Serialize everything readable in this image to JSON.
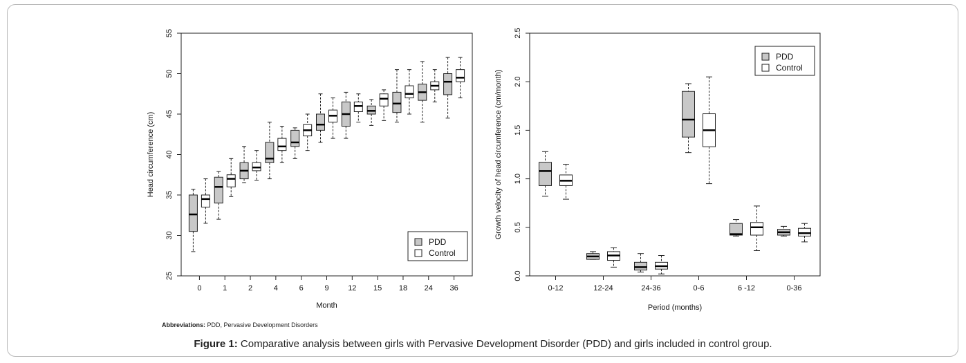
{
  "chart_data": [
    {
      "type": "boxplot",
      "xlabel": "Month",
      "ylabel": "Head circumference (cm)",
      "ylim": [
        25,
        55
      ],
      "yticks": [
        25,
        30,
        35,
        40,
        45,
        50,
        55
      ],
      "categories": [
        "0",
        "1",
        "2",
        "4",
        "6",
        "9",
        "12",
        "15",
        "18",
        "24",
        "36"
      ],
      "legend": {
        "position": "bottom-right",
        "entries": [
          "PDD",
          "Control"
        ]
      },
      "series": [
        {
          "name": "PDD",
          "color": "#c8c8c8",
          "boxes": [
            {
              "min": 28.0,
              "q1": 30.5,
              "median": 32.6,
              "q3": 35.0,
              "max": 35.7
            },
            {
              "min": 32.0,
              "q1": 34.0,
              "median": 36.0,
              "q3": 37.2,
              "max": 37.9
            },
            {
              "min": 36.5,
              "q1": 37.0,
              "median": 38.0,
              "q3": 39.0,
              "max": 41.0
            },
            {
              "min": 37.0,
              "q1": 39.0,
              "median": 39.5,
              "q3": 41.5,
              "max": 44.0
            },
            {
              "min": 39.5,
              "q1": 41.0,
              "median": 41.5,
              "q3": 43.0,
              "max": 43.3
            },
            {
              "min": 41.5,
              "q1": 43.0,
              "median": 43.7,
              "q3": 45.0,
              "max": 47.5
            },
            {
              "min": 42.0,
              "q1": 43.5,
              "median": 45.0,
              "q3": 46.5,
              "max": 47.7
            },
            {
              "min": 43.6,
              "q1": 45.0,
              "median": 45.4,
              "q3": 46.0,
              "max": 46.8
            },
            {
              "min": 44.0,
              "q1": 45.2,
              "median": 46.3,
              "q3": 47.7,
              "max": 50.5
            },
            {
              "min": 44.0,
              "q1": 46.7,
              "median": 47.7,
              "q3": 48.7,
              "max": 51.5
            },
            {
              "min": 44.5,
              "q1": 47.4,
              "median": 49.0,
              "q3": 50.0,
              "max": 52.0
            }
          ]
        },
        {
          "name": "Control",
          "color": "#ffffff",
          "boxes": [
            {
              "min": 31.5,
              "q1": 33.5,
              "median": 34.5,
              "q3": 35.0,
              "max": 37.0
            },
            {
              "min": 34.8,
              "q1": 36.0,
              "median": 37.0,
              "q3": 37.5,
              "max": 39.5
            },
            {
              "min": 36.8,
              "q1": 38.0,
              "median": 38.4,
              "q3": 39.0,
              "max": 40.5
            },
            {
              "min": 39.0,
              "q1": 40.5,
              "median": 41.0,
              "q3": 42.0,
              "max": 43.5
            },
            {
              "min": 40.5,
              "q1": 42.3,
              "median": 43.0,
              "q3": 43.7,
              "max": 45.0
            },
            {
              "min": 42.0,
              "q1": 44.0,
              "median": 44.8,
              "q3": 45.5,
              "max": 47.0
            },
            {
              "min": 44.0,
              "q1": 45.3,
              "median": 46.0,
              "q3": 46.5,
              "max": 47.5
            },
            {
              "min": 44.2,
              "q1": 46.0,
              "median": 46.9,
              "q3": 47.5,
              "max": 48.0
            },
            {
              "min": 45.0,
              "q1": 47.0,
              "median": 47.5,
              "q3": 48.5,
              "max": 50.5
            },
            {
              "min": 46.5,
              "q1": 48.0,
              "median": 48.5,
              "q3": 49.0,
              "max": 50.5
            },
            {
              "min": 47.0,
              "q1": 49.0,
              "median": 49.5,
              "q3": 50.5,
              "max": 52.0
            }
          ]
        }
      ]
    },
    {
      "type": "boxplot",
      "xlabel": "Period (months)",
      "ylabel": "Growth velocity of head circumference (cm/month)",
      "ylim": [
        0.0,
        2.5
      ],
      "yticks": [
        "0.0",
        "0.5",
        "1.0",
        "1.5",
        "2.0",
        "2.5"
      ],
      "categories": [
        "0-12",
        "12-24",
        "24-36",
        "0-6",
        "6 -12",
        "0-36"
      ],
      "legend": {
        "position": "top-right",
        "entries": [
          "PDD",
          "Control"
        ]
      },
      "series": [
        {
          "name": "PDD",
          "color": "#c8c8c8",
          "boxes": [
            {
              "min": 0.82,
              "q1": 0.93,
              "median": 1.08,
              "q3": 1.17,
              "max": 1.28
            },
            {
              "min": 0.17,
              "q1": 0.17,
              "median": 0.2,
              "q3": 0.23,
              "max": 0.25
            },
            {
              "min": 0.04,
              "q1": 0.06,
              "median": 0.09,
              "q3": 0.14,
              "max": 0.23
            },
            {
              "min": 1.27,
              "q1": 1.43,
              "median": 1.61,
              "q3": 1.9,
              "max": 1.98
            },
            {
              "min": 0.41,
              "q1": 0.42,
              "median": 0.43,
              "q3": 0.54,
              "max": 0.58
            },
            {
              "min": 0.41,
              "q1": 0.42,
              "median": 0.45,
              "q3": 0.48,
              "max": 0.51
            }
          ]
        },
        {
          "name": "Control",
          "color": "#ffffff",
          "boxes": [
            {
              "min": 0.79,
              "q1": 0.93,
              "median": 0.98,
              "q3": 1.04,
              "max": 1.15
            },
            {
              "min": 0.09,
              "q1": 0.16,
              "median": 0.21,
              "q3": 0.25,
              "max": 0.29
            },
            {
              "min": 0.02,
              "q1": 0.07,
              "median": 0.1,
              "q3": 0.14,
              "max": 0.21
            },
            {
              "min": 0.95,
              "q1": 1.33,
              "median": 1.5,
              "q3": 1.67,
              "max": 2.05
            },
            {
              "min": 0.26,
              "q1": 0.42,
              "median": 0.5,
              "q3": 0.55,
              "max": 0.72
            },
            {
              "min": 0.35,
              "q1": 0.41,
              "median": 0.44,
              "q3": 0.49,
              "max": 0.54
            }
          ]
        }
      ]
    }
  ],
  "abbreviations": {
    "label": "Abbreviations:",
    "text": " PDD, Pervasive Development Disorders"
  },
  "caption": {
    "label": "Figure 1:",
    "text": " Comparative analysis between girls with Pervasive Development Disorder (PDD) and girls included in control group."
  }
}
